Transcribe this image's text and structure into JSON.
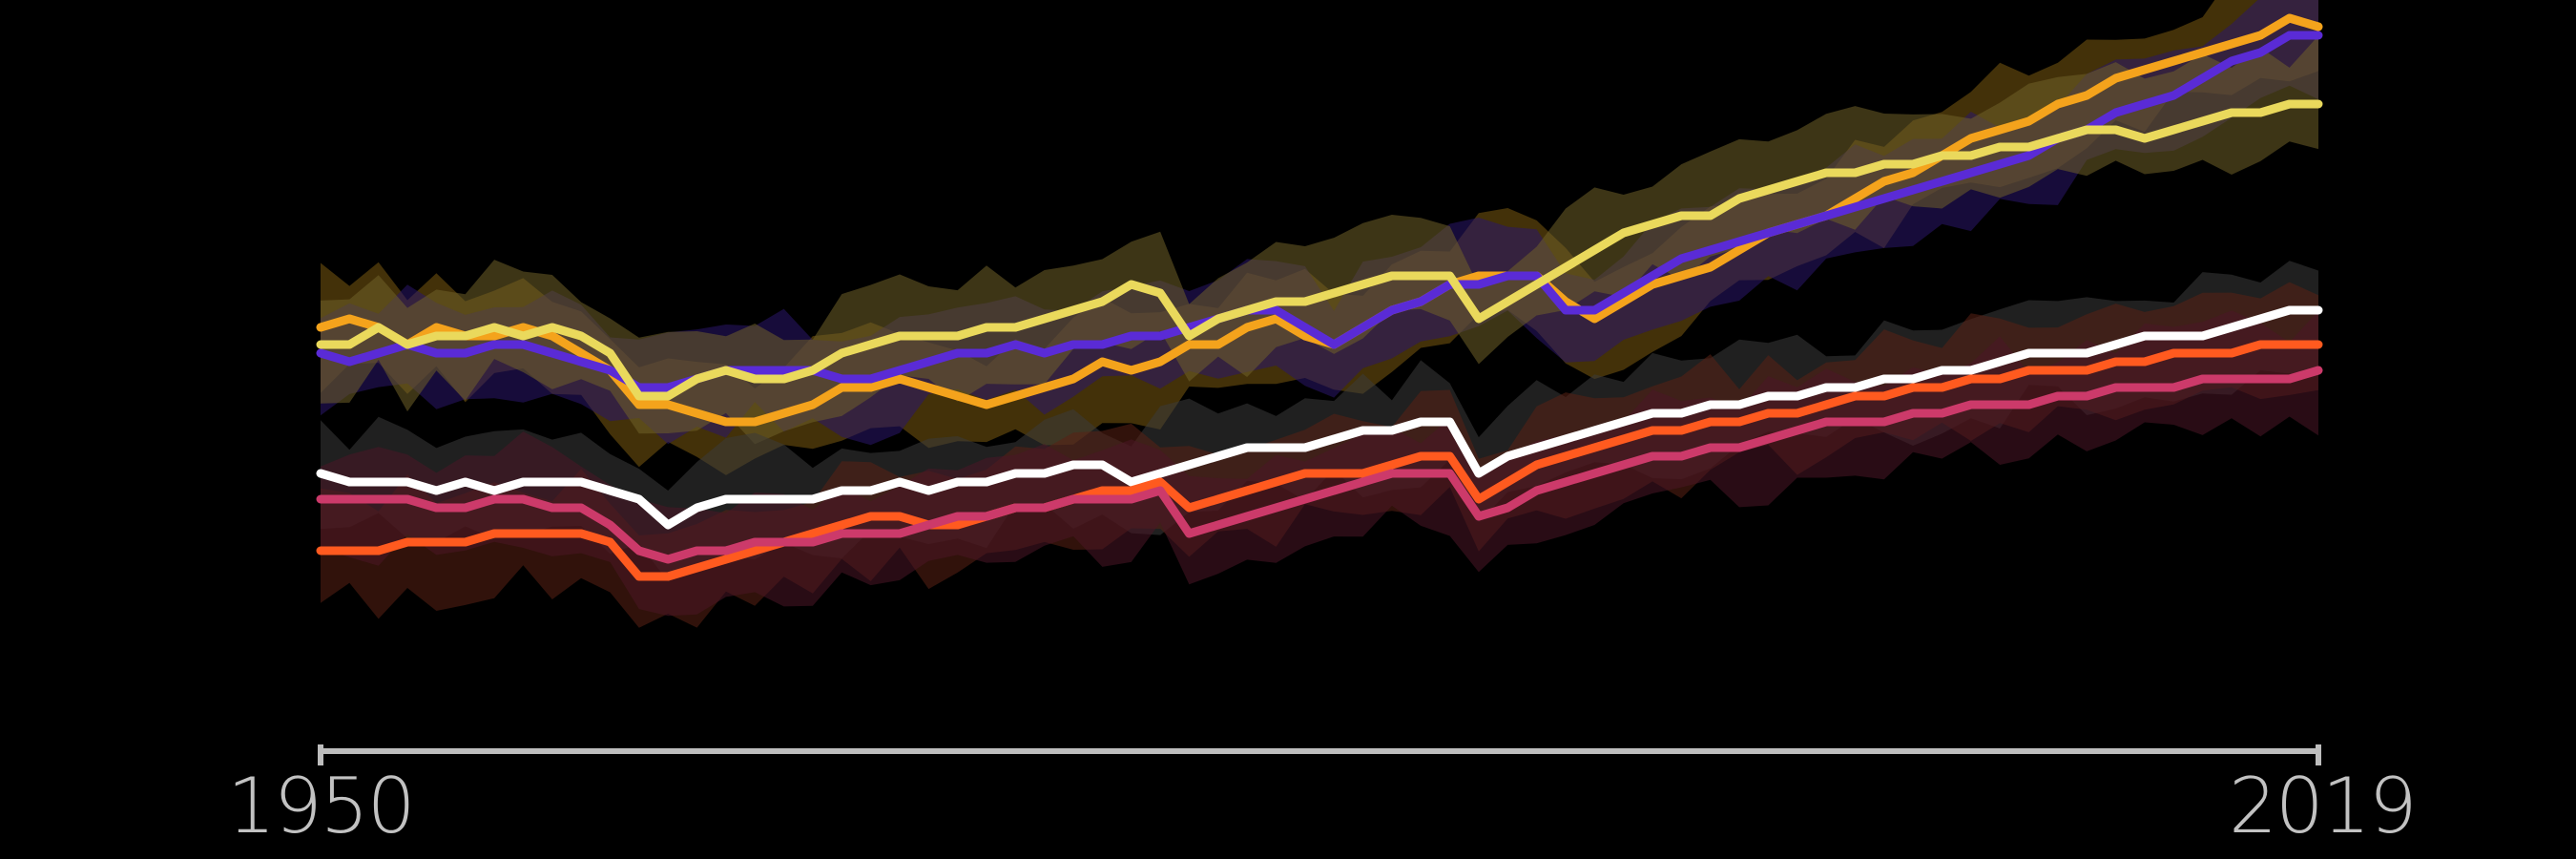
{
  "chart_data": {
    "type": "line",
    "title": "",
    "xlabel": "",
    "ylabel": "",
    "x_start": 1950,
    "x_end": 2019,
    "x_tick_labels": [
      "1950",
      "2019"
    ],
    "grid": false,
    "legend": "none",
    "background_color": "#000000",
    "axis_color": "#bdbdbd",
    "series": [
      {
        "color": "#f4a31c",
        "band_color": "#7a5a10",
        "values": [
          0.53,
          0.54,
          0.53,
          0.51,
          0.53,
          0.52,
          0.52,
          0.53,
          0.52,
          0.5,
          0.48,
          0.44,
          0.44,
          0.43,
          0.42,
          0.42,
          0.43,
          0.44,
          0.46,
          0.46,
          0.47,
          0.46,
          0.45,
          0.44,
          0.45,
          0.46,
          0.47,
          0.49,
          0.48,
          0.49,
          0.51,
          0.51,
          0.53,
          0.54,
          0.52,
          0.51,
          0.53,
          0.55,
          0.56,
          0.58,
          0.59,
          0.59,
          0.59,
          0.56,
          0.54,
          0.56,
          0.58,
          0.59,
          0.6,
          0.62,
          0.64,
          0.65,
          0.66,
          0.68,
          0.7,
          0.71,
          0.73,
          0.75,
          0.76,
          0.77,
          0.79,
          0.8,
          0.82,
          0.83,
          0.84,
          0.85,
          0.86,
          0.87,
          0.89,
          0.88
        ]
      },
      {
        "color": "#5a2bd6",
        "band_color": "#2a156a",
        "values": [
          0.5,
          0.49,
          0.5,
          0.51,
          0.5,
          0.5,
          0.51,
          0.51,
          0.5,
          0.49,
          0.48,
          0.46,
          0.46,
          0.47,
          0.48,
          0.48,
          0.48,
          0.48,
          0.47,
          0.47,
          0.48,
          0.49,
          0.5,
          0.5,
          0.51,
          0.5,
          0.51,
          0.51,
          0.52,
          0.52,
          0.53,
          0.54,
          0.55,
          0.55,
          0.53,
          0.51,
          0.53,
          0.55,
          0.56,
          0.58,
          0.58,
          0.59,
          0.59,
          0.55,
          0.55,
          0.57,
          0.59,
          0.61,
          0.62,
          0.63,
          0.64,
          0.65,
          0.66,
          0.67,
          0.68,
          0.69,
          0.7,
          0.71,
          0.72,
          0.73,
          0.75,
          0.76,
          0.78,
          0.79,
          0.8,
          0.82,
          0.84,
          0.85,
          0.87,
          0.87
        ]
      },
      {
        "color": "#ead95c",
        "band_color": "#6f6028",
        "values": [
          0.51,
          0.51,
          0.53,
          0.51,
          0.52,
          0.52,
          0.53,
          0.52,
          0.53,
          0.52,
          0.5,
          0.45,
          0.45,
          0.47,
          0.48,
          0.47,
          0.47,
          0.48,
          0.5,
          0.51,
          0.52,
          0.52,
          0.52,
          0.53,
          0.53,
          0.54,
          0.55,
          0.56,
          0.58,
          0.57,
          0.52,
          0.54,
          0.55,
          0.56,
          0.56,
          0.57,
          0.58,
          0.59,
          0.59,
          0.59,
          0.54,
          0.56,
          0.58,
          0.6,
          0.62,
          0.64,
          0.65,
          0.66,
          0.66,
          0.68,
          0.69,
          0.7,
          0.71,
          0.71,
          0.72,
          0.72,
          0.73,
          0.73,
          0.74,
          0.74,
          0.75,
          0.76,
          0.76,
          0.75,
          0.76,
          0.77,
          0.78,
          0.78,
          0.79,
          0.79
        ]
      },
      {
        "color": "#ffffff",
        "band_color": "#3a3a3a",
        "values": [
          0.36,
          0.35,
          0.35,
          0.35,
          0.34,
          0.35,
          0.34,
          0.35,
          0.35,
          0.35,
          0.34,
          0.33,
          0.3,
          0.32,
          0.33,
          0.33,
          0.33,
          0.33,
          0.34,
          0.34,
          0.35,
          0.34,
          0.35,
          0.35,
          0.36,
          0.36,
          0.37,
          0.37,
          0.35,
          0.36,
          0.37,
          0.38,
          0.39,
          0.39,
          0.39,
          0.4,
          0.41,
          0.41,
          0.42,
          0.42,
          0.36,
          0.38,
          0.39,
          0.4,
          0.41,
          0.42,
          0.43,
          0.43,
          0.44,
          0.44,
          0.45,
          0.45,
          0.46,
          0.46,
          0.47,
          0.47,
          0.48,
          0.48,
          0.49,
          0.5,
          0.5,
          0.5,
          0.51,
          0.52,
          0.52,
          0.52,
          0.53,
          0.54,
          0.55,
          0.55
        ]
      },
      {
        "color": "#ff5a1f",
        "band_color": "#5a2014",
        "values": [
          0.27,
          0.27,
          0.27,
          0.28,
          0.28,
          0.28,
          0.29,
          0.29,
          0.29,
          0.29,
          0.28,
          0.24,
          0.24,
          0.25,
          0.26,
          0.27,
          0.28,
          0.29,
          0.3,
          0.31,
          0.31,
          0.3,
          0.3,
          0.31,
          0.32,
          0.32,
          0.33,
          0.34,
          0.34,
          0.35,
          0.32,
          0.33,
          0.34,
          0.35,
          0.36,
          0.36,
          0.36,
          0.37,
          0.38,
          0.38,
          0.33,
          0.35,
          0.37,
          0.38,
          0.39,
          0.4,
          0.41,
          0.41,
          0.42,
          0.42,
          0.43,
          0.43,
          0.44,
          0.45,
          0.45,
          0.46,
          0.46,
          0.47,
          0.47,
          0.48,
          0.48,
          0.48,
          0.49,
          0.49,
          0.5,
          0.5,
          0.5,
          0.51,
          0.51,
          0.51
        ]
      },
      {
        "color": "#cc3a6a",
        "band_color": "#4a1626",
        "values": [
          0.33,
          0.33,
          0.33,
          0.33,
          0.32,
          0.32,
          0.33,
          0.33,
          0.32,
          0.32,
          0.3,
          0.27,
          0.26,
          0.27,
          0.27,
          0.28,
          0.28,
          0.28,
          0.29,
          0.29,
          0.29,
          0.3,
          0.31,
          0.31,
          0.32,
          0.32,
          0.33,
          0.33,
          0.33,
          0.34,
          0.29,
          0.3,
          0.31,
          0.32,
          0.33,
          0.34,
          0.35,
          0.36,
          0.36,
          0.36,
          0.31,
          0.32,
          0.34,
          0.35,
          0.36,
          0.37,
          0.38,
          0.38,
          0.39,
          0.39,
          0.4,
          0.41,
          0.42,
          0.42,
          0.42,
          0.43,
          0.43,
          0.44,
          0.44,
          0.44,
          0.45,
          0.45,
          0.46,
          0.46,
          0.46,
          0.47,
          0.47,
          0.47,
          0.47,
          0.48
        ]
      }
    ]
  }
}
